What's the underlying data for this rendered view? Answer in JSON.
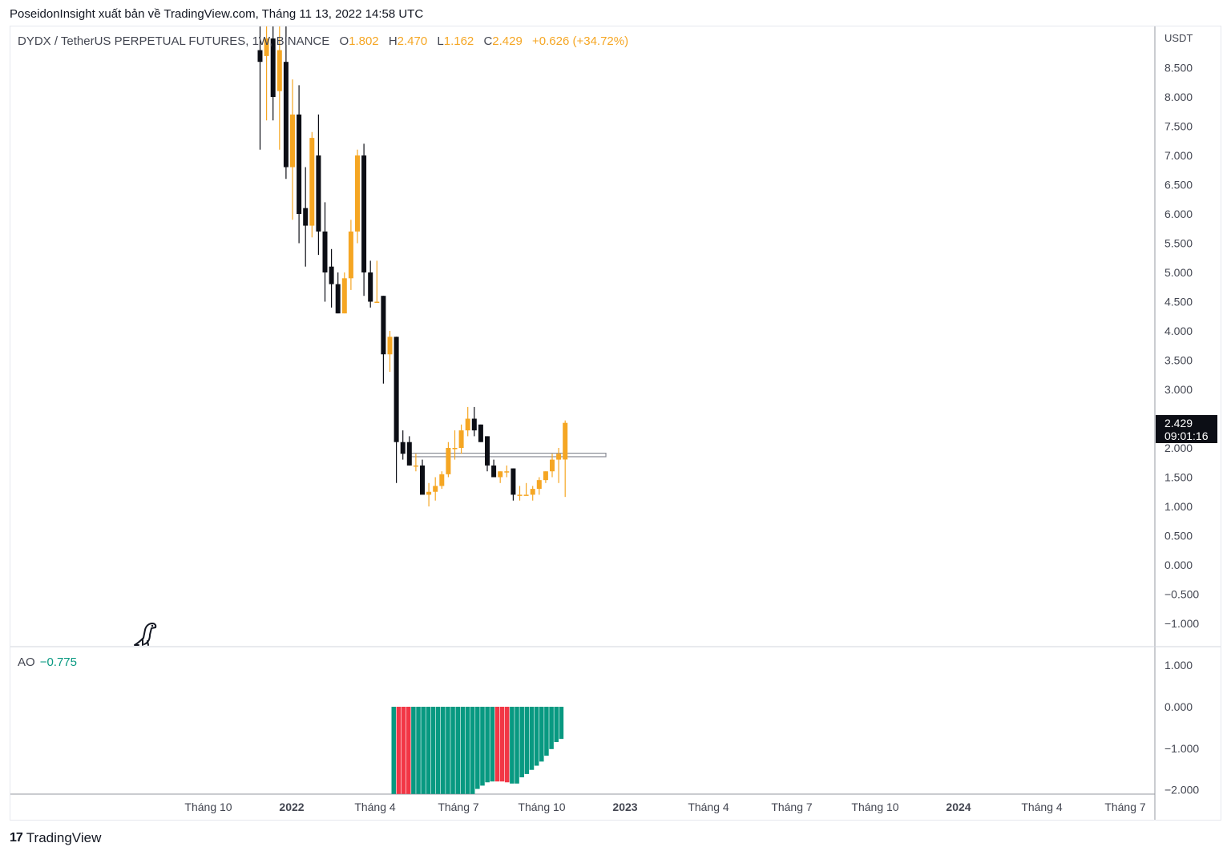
{
  "header": {
    "publisher_line": "PoseidonInsight xuất bản về TradingView.com, Tháng 11 13, 2022 14:58 UTC"
  },
  "legend": {
    "symbol": "DYDX / TetherUS PERPETUAL FUTURES, 1W, BINANCE",
    "o_label": "O",
    "o_value": "1.802",
    "h_label": "H",
    "h_value": "2.470",
    "l_label": "L",
    "l_value": "1.162",
    "c_label": "C",
    "c_value": "2.429",
    "change": "+0.626 (+34.72%)"
  },
  "price_tag": {
    "price": "2.429",
    "countdown": "09:01:16"
  },
  "ao_legend": {
    "label": "AO",
    "value": "−0.775"
  },
  "footer": {
    "brand": "TradingView",
    "mark": "17"
  },
  "colors": {
    "up": "#f5a623",
    "down": "#0c0e15",
    "ao_up": "#089981",
    "ao_down": "#f23645",
    "axis_text": "#434651"
  },
  "chart_data": [
    {
      "type": "candlestick",
      "title": "DYDX / TetherUS PERPETUAL FUTURES, 1W, BINANCE",
      "ylabel": "USDT",
      "ylim": [
        -1.3,
        9.2
      ],
      "y_ticks": [
        "8.500",
        "8.000",
        "7.500",
        "7.000",
        "6.500",
        "6.000",
        "5.500",
        "5.000",
        "4.500",
        "4.000",
        "3.500",
        "3.000",
        "2.500",
        "2.000",
        "1.500",
        "1.000",
        "0.500",
        "0.000",
        "−0.500",
        "−1.000"
      ],
      "x_ticks": [
        "Tháng 10",
        "2022",
        "Tháng 4",
        "Tháng 7",
        "Tháng 10",
        "2023",
        "Tháng 4",
        "Tháng 7",
        "Tháng 10",
        "2024",
        "Tháng 4",
        "Tháng 7"
      ],
      "x_tick_bold": [
        false,
        true,
        false,
        false,
        false,
        true,
        false,
        false,
        false,
        true,
        false,
        false
      ],
      "candles": [
        {
          "o": 8.8,
          "h": 9.6,
          "l": 7.1,
          "c": 8.6
        },
        {
          "o": 8.7,
          "h": 9.4,
          "l": 7.6,
          "c": 9.0
        },
        {
          "o": 9.0,
          "h": 9.6,
          "l": 7.6,
          "c": 8.0
        },
        {
          "o": 8.1,
          "h": 9.4,
          "l": 7.1,
          "c": 8.8
        },
        {
          "o": 8.6,
          "h": 9.3,
          "l": 6.6,
          "c": 6.8
        },
        {
          "o": 6.8,
          "h": 8.3,
          "l": 5.9,
          "c": 7.7
        },
        {
          "o": 7.7,
          "h": 8.2,
          "l": 5.5,
          "c": 6.0
        },
        {
          "o": 6.1,
          "h": 6.8,
          "l": 5.1,
          "c": 5.8
        },
        {
          "o": 5.8,
          "h": 7.4,
          "l": 5.6,
          "c": 7.3
        },
        {
          "o": 7.0,
          "h": 7.7,
          "l": 5.3,
          "c": 5.7
        },
        {
          "o": 5.7,
          "h": 6.2,
          "l": 4.5,
          "c": 5.0
        },
        {
          "o": 5.1,
          "h": 5.4,
          "l": 4.4,
          "c": 4.8
        },
        {
          "o": 4.8,
          "h": 5.0,
          "l": 4.3,
          "c": 4.3
        },
        {
          "o": 4.3,
          "h": 5.0,
          "l": 4.3,
          "c": 4.9
        },
        {
          "o": 4.9,
          "h": 5.9,
          "l": 4.7,
          "c": 5.7
        },
        {
          "o": 5.7,
          "h": 7.1,
          "l": 5.5,
          "c": 7.0
        },
        {
          "o": 7.0,
          "h": 7.2,
          "l": 4.6,
          "c": 5.0
        },
        {
          "o": 5.0,
          "h": 5.2,
          "l": 4.4,
          "c": 4.5
        },
        {
          "o": 4.5,
          "h": 5.2,
          "l": 4.5,
          "c": 4.5
        },
        {
          "o": 4.6,
          "h": 4.6,
          "l": 3.1,
          "c": 3.6
        },
        {
          "o": 3.6,
          "h": 4.0,
          "l": 3.3,
          "c": 3.9
        },
        {
          "o": 3.9,
          "h": 3.9,
          "l": 1.4,
          "c": 2.1
        },
        {
          "o": 2.1,
          "h": 2.3,
          "l": 1.8,
          "c": 1.9
        },
        {
          "o": 2.1,
          "h": 2.2,
          "l": 1.7,
          "c": 1.7
        },
        {
          "o": 1.7,
          "h": 1.9,
          "l": 1.6,
          "c": 1.7
        },
        {
          "o": 1.7,
          "h": 1.8,
          "l": 1.3,
          "c": 1.2
        },
        {
          "o": 1.2,
          "h": 1.4,
          "l": 1.0,
          "c": 1.25
        },
        {
          "o": 1.25,
          "h": 1.5,
          "l": 1.1,
          "c": 1.35
        },
        {
          "o": 1.35,
          "h": 1.6,
          "l": 1.3,
          "c": 1.55
        },
        {
          "o": 1.55,
          "h": 2.1,
          "l": 1.5,
          "c": 2.0
        },
        {
          "o": 2.0,
          "h": 2.3,
          "l": 1.8,
          "c": 2.0
        },
        {
          "o": 2.0,
          "h": 2.4,
          "l": 1.9,
          "c": 2.3
        },
        {
          "o": 2.3,
          "h": 2.7,
          "l": 2.2,
          "c": 2.5
        },
        {
          "o": 2.5,
          "h": 2.7,
          "l": 2.2,
          "c": 2.3
        },
        {
          "o": 2.4,
          "h": 2.4,
          "l": 2.1,
          "c": 2.1
        },
        {
          "o": 2.2,
          "h": 2.2,
          "l": 1.6,
          "c": 1.7
        },
        {
          "o": 1.7,
          "h": 1.8,
          "l": 1.5,
          "c": 1.5
        },
        {
          "o": 1.5,
          "h": 1.6,
          "l": 1.4,
          "c": 1.6
        },
        {
          "o": 1.6,
          "h": 1.7,
          "l": 1.5,
          "c": 1.6
        },
        {
          "o": 1.65,
          "h": 1.65,
          "l": 1.1,
          "c": 1.2
        },
        {
          "o": 1.2,
          "h": 1.35,
          "l": 1.1,
          "c": 1.2
        },
        {
          "o": 1.2,
          "h": 1.4,
          "l": 1.2,
          "c": 1.2
        },
        {
          "o": 1.2,
          "h": 1.35,
          "l": 1.1,
          "c": 1.3
        },
        {
          "o": 1.3,
          "h": 1.5,
          "l": 1.2,
          "c": 1.45
        },
        {
          "o": 1.45,
          "h": 1.6,
          "l": 1.4,
          "c": 1.6
        },
        {
          "o": 1.6,
          "h": 1.9,
          "l": 1.5,
          "c": 1.8
        },
        {
          "o": 1.8,
          "h": 2.0,
          "l": 1.4,
          "c": 1.9
        },
        {
          "o": 1.802,
          "h": 2.47,
          "l": 1.162,
          "c": 2.429
        }
      ],
      "zone": {
        "from": 1.85,
        "to": 1.91
      }
    },
    {
      "type": "bar",
      "title": "AO",
      "ylim": [
        -2.1,
        1.3
      ],
      "y_ticks": [
        "1.000",
        "0.000",
        "−1.000",
        "−2.000"
      ],
      "values": [
        -2.1,
        -2.1,
        -2.1,
        -2.1,
        -2.1,
        -2.1,
        -2.1,
        -2.1,
        -2.1,
        -2.1,
        -2.1,
        -2.1,
        -2.1,
        -2.1,
        -2.1,
        -2.1,
        -2.1,
        -1.98,
        -1.9,
        -1.82,
        -1.8,
        -1.8,
        -1.8,
        -1.82,
        -1.85,
        -1.85,
        -1.7,
        -1.62,
        -1.52,
        -1.42,
        -1.32,
        -1.18,
        -1.02,
        -0.85,
        -0.775
      ],
      "bar_colors": [
        "up",
        "down",
        "down",
        "down",
        "up",
        "up",
        "up",
        "up",
        "up",
        "up",
        "up",
        "up",
        "up",
        "up",
        "up",
        "up",
        "up",
        "up",
        "up",
        "up",
        "up",
        "down",
        "down",
        "down",
        "up",
        "up",
        "up",
        "up",
        "up",
        "up",
        "up",
        "up",
        "up",
        "up",
        "up"
      ]
    }
  ]
}
